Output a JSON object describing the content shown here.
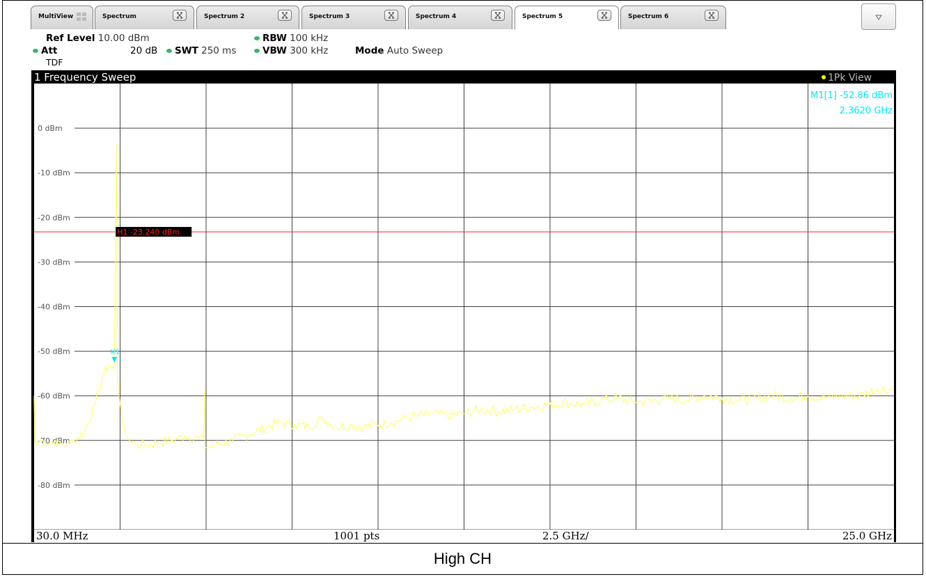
{
  "tabs": [
    {
      "label": "MultiView",
      "active": false,
      "closable": false
    },
    {
      "label": "Spectrum",
      "active": false,
      "closable": true
    },
    {
      "label": "Spectrum 2",
      "active": false,
      "closable": true
    },
    {
      "label": "Spectrum 3",
      "active": false,
      "closable": true
    },
    {
      "label": "Spectrum 4",
      "active": false,
      "closable": true
    },
    {
      "label": "Spectrum 5",
      "active": true,
      "closable": true
    },
    {
      "label": "Spectrum 6",
      "active": false,
      "closable": true
    }
  ],
  "settings": {
    "ref_level_label": "Ref Level",
    "ref_level_value": "10.00 dBm",
    "att_label": "Att",
    "att_value": "20 dB",
    "swt_label": "SWT",
    "swt_value": "250 ms",
    "rbw_label": "RBW",
    "rbw_value": "100 kHz",
    "vbw_label": "VBW",
    "vbw_value": "300 kHz",
    "mode_label": "Mode",
    "mode_value": "Auto Sweep",
    "tdf": "TDF"
  },
  "window": {
    "title": "1 Frequency Sweep",
    "view_label": "1Pk View",
    "marker_line1": "M1[1] -52.86 dBm",
    "marker_line2": "2.3620 GHz",
    "limit_line_label": "H1 -23.240 dBm",
    "start_freq": "30.0 MHz",
    "points": "1001 pts",
    "span_per_div": "2.5 GHz/",
    "stop_freq": "25.0 GHz"
  },
  "caption": "High CH",
  "colors": {
    "trace": "#ffff66",
    "grid": "#ffffff",
    "limit_line": "#ff2020",
    "marker": "#00e5ff",
    "background": "#000000"
  },
  "chart_data": {
    "type": "line",
    "x_unit": "GHz",
    "y_unit": "dBm",
    "xlim": [
      0.03,
      25.0
    ],
    "ylim": [
      -90,
      10
    ],
    "yticks": [
      {
        "value": 0,
        "label": "0 dBm"
      },
      {
        "value": -10,
        "label": "-10 dBm"
      },
      {
        "value": -20,
        "label": "-20 dBm"
      },
      {
        "value": -30,
        "label": "-30 dBm"
      },
      {
        "value": -40,
        "label": "-40 dBm"
      },
      {
        "value": -50,
        "label": "-50 dBm"
      },
      {
        "value": -60,
        "label": "-60 dBm"
      },
      {
        "value": -70,
        "label": "-70 dBm"
      },
      {
        "value": -80,
        "label": "-80 dBm"
      }
    ],
    "limit_line_dbm": -23.24,
    "marker": {
      "name": "M1",
      "x": 2.362,
      "y": -52.86
    },
    "trace": {
      "x": [
        0.03,
        0.05,
        0.1,
        0.2,
        0.5,
        0.8,
        1.0,
        1.2,
        1.5,
        1.8,
        2.0,
        2.2,
        2.3,
        2.36,
        2.42,
        2.45,
        2.47,
        2.5,
        2.55,
        2.6,
        2.7,
        2.8,
        3.0,
        3.3,
        3.6,
        4.0,
        4.4,
        4.8,
        4.95,
        4.98,
        5.0,
        5.3,
        5.8,
        6.3,
        6.8,
        7.2,
        7.6,
        8.0,
        8.4,
        8.8,
        9.2,
        9.6,
        10.0,
        10.4,
        10.8,
        11.2,
        11.6,
        12.0,
        12.5,
        13.0,
        13.5,
        14.0,
        14.5,
        15.0,
        15.5,
        16.0,
        16.5,
        17.0,
        17.5,
        18.0,
        18.5,
        19.0,
        19.5,
        20.0,
        20.5,
        21.0,
        21.5,
        22.0,
        22.5,
        23.0,
        23.5,
        24.0,
        24.5,
        25.0
      ],
      "y": [
        -60,
        -70,
        -71,
        -70,
        -70.5,
        -70.5,
        -71,
        -70,
        -68,
        -62,
        -56,
        -53,
        -54,
        -52.86,
        -3.6,
        -55,
        -58,
        -60,
        -63,
        -66,
        -69,
        -70,
        -71,
        -71,
        -70.5,
        -70,
        -69,
        -69.5,
        -69.5,
        -58.6,
        -71.5,
        -71,
        -70,
        -68.5,
        -67,
        -66,
        -66.5,
        -67,
        -65,
        -67,
        -66.5,
        -67,
        -66.5,
        -66,
        -65,
        -64.5,
        -64,
        -64.5,
        -64,
        -63,
        -63.5,
        -63,
        -62.5,
        -62,
        -61.5,
        -62,
        -61,
        -60.5,
        -61.5,
        -61,
        -60.5,
        -61,
        -60,
        -60.5,
        -61,
        -60.5,
        -60,
        -60.5,
        -60,
        -60.5,
        -60,
        -60,
        -58.5,
        -58.5
      ]
    }
  }
}
